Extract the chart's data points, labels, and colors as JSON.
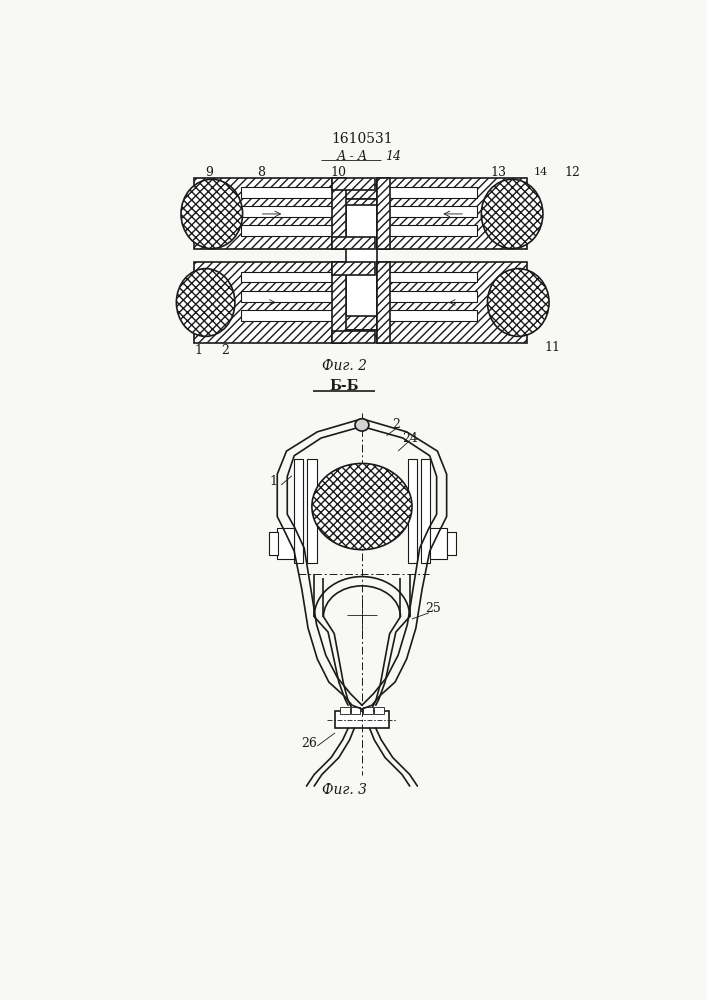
{
  "title": "1610531",
  "fig2_label": "Фиг. 2",
  "fig3_label": "Фиг. 3",
  "section_aa": "А - А",
  "section_bb": "Б-Б",
  "bg_color": "#f8f8f4",
  "lc": "#1a1a1a"
}
